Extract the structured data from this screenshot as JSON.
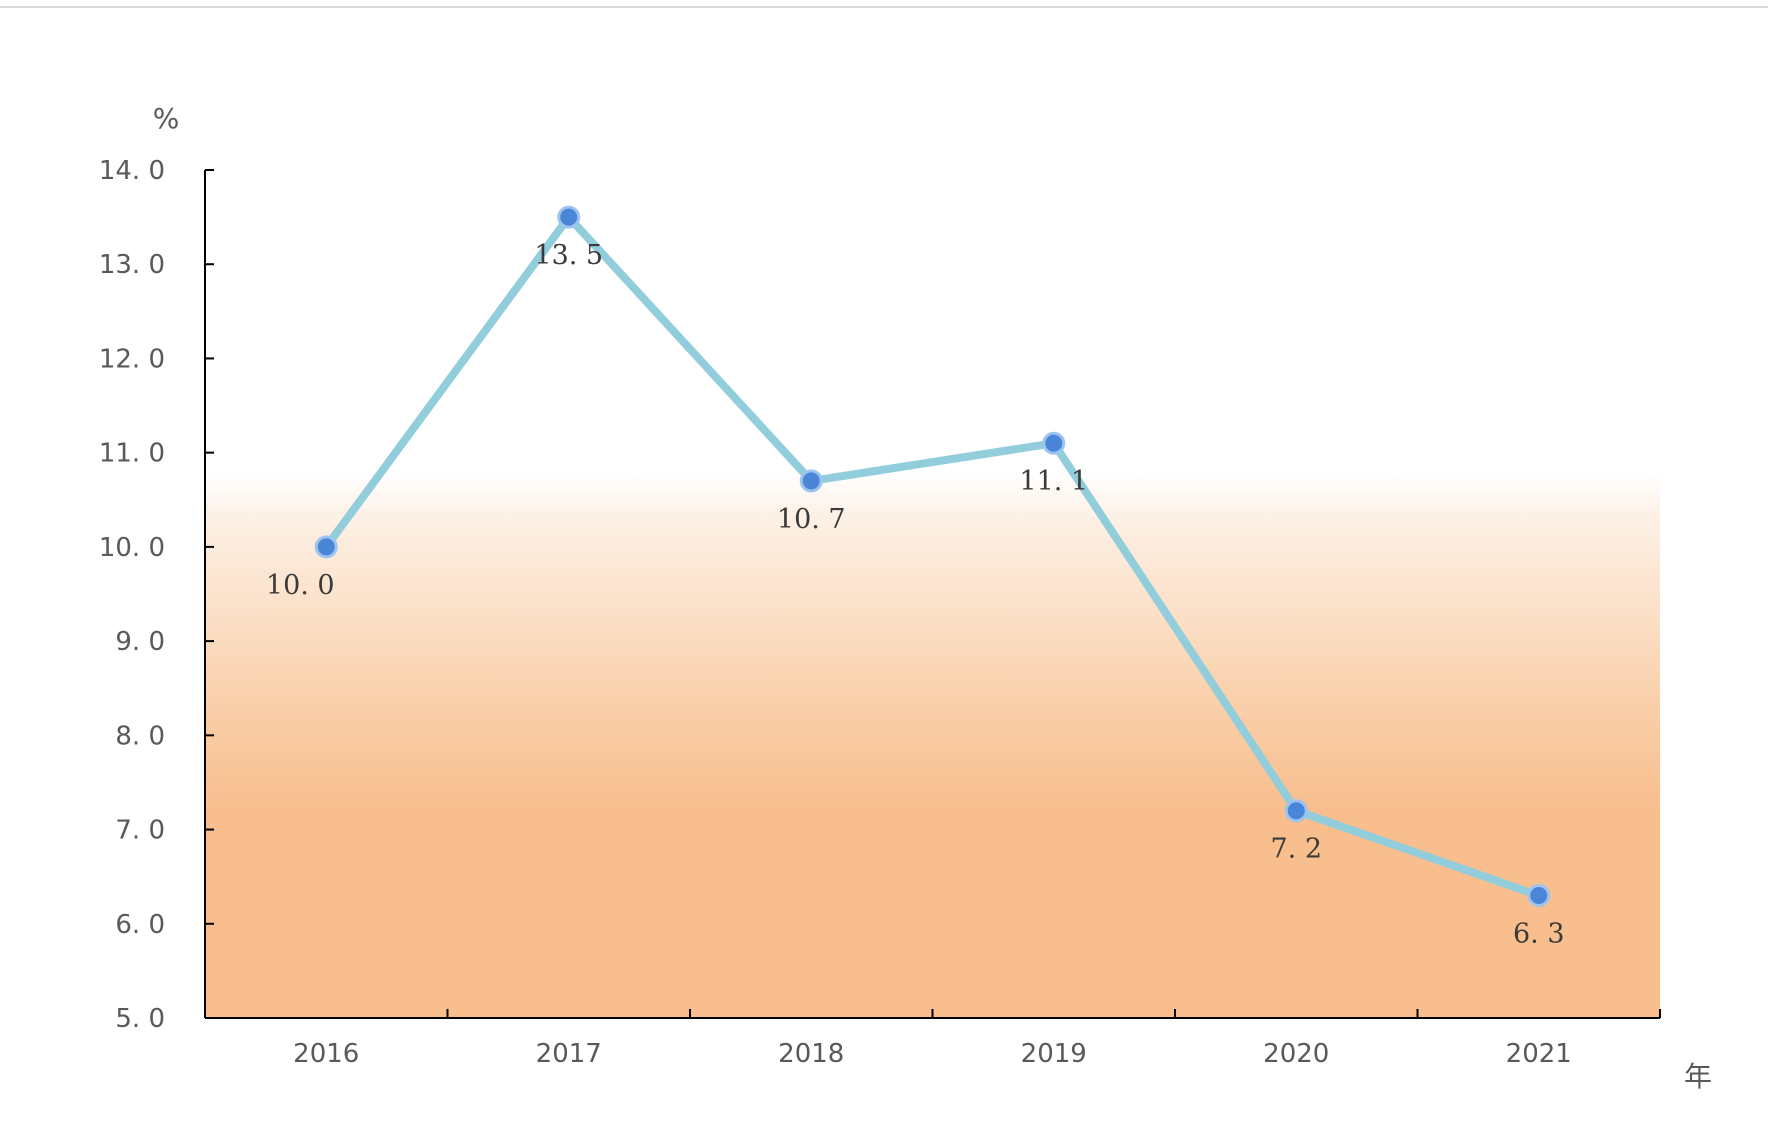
{
  "chart_data": {
    "type": "line",
    "title": "",
    "xlabel": "年",
    "ylabel": "%",
    "categories": [
      "2016",
      "2017",
      "2018",
      "2019",
      "2020",
      "2021"
    ],
    "series": [
      {
        "values": [
          10.0,
          13.5,
          10.7,
          11.1,
          7.2,
          6.3
        ],
        "data_labels": [
          "10. 0",
          "13. 5",
          "10. 7",
          "11. 1",
          "7. 2",
          "6. 3"
        ]
      }
    ],
    "ylim": [
      5.0,
      14.0
    ],
    "y_ticks": [
      5.0,
      6.0,
      7.0,
      8.0,
      9.0,
      10.0,
      11.0,
      12.0,
      13.0,
      14.0
    ],
    "y_tick_labels": [
      "5. 0",
      "6. 0",
      "7. 0",
      "8. 0",
      "9. 0",
      "10. 0",
      "11. 0",
      "12. 0",
      "13. 0",
      "14. 0"
    ],
    "grid": false,
    "legend": "none",
    "colors": {
      "line": "#92cddc",
      "marker": "#4a86d8",
      "marker_stroke": "#9dc3f0",
      "background_gradient_top": "#ffffff",
      "background_gradient_bottom": "#f8be8e",
      "axis": "#000000"
    }
  }
}
